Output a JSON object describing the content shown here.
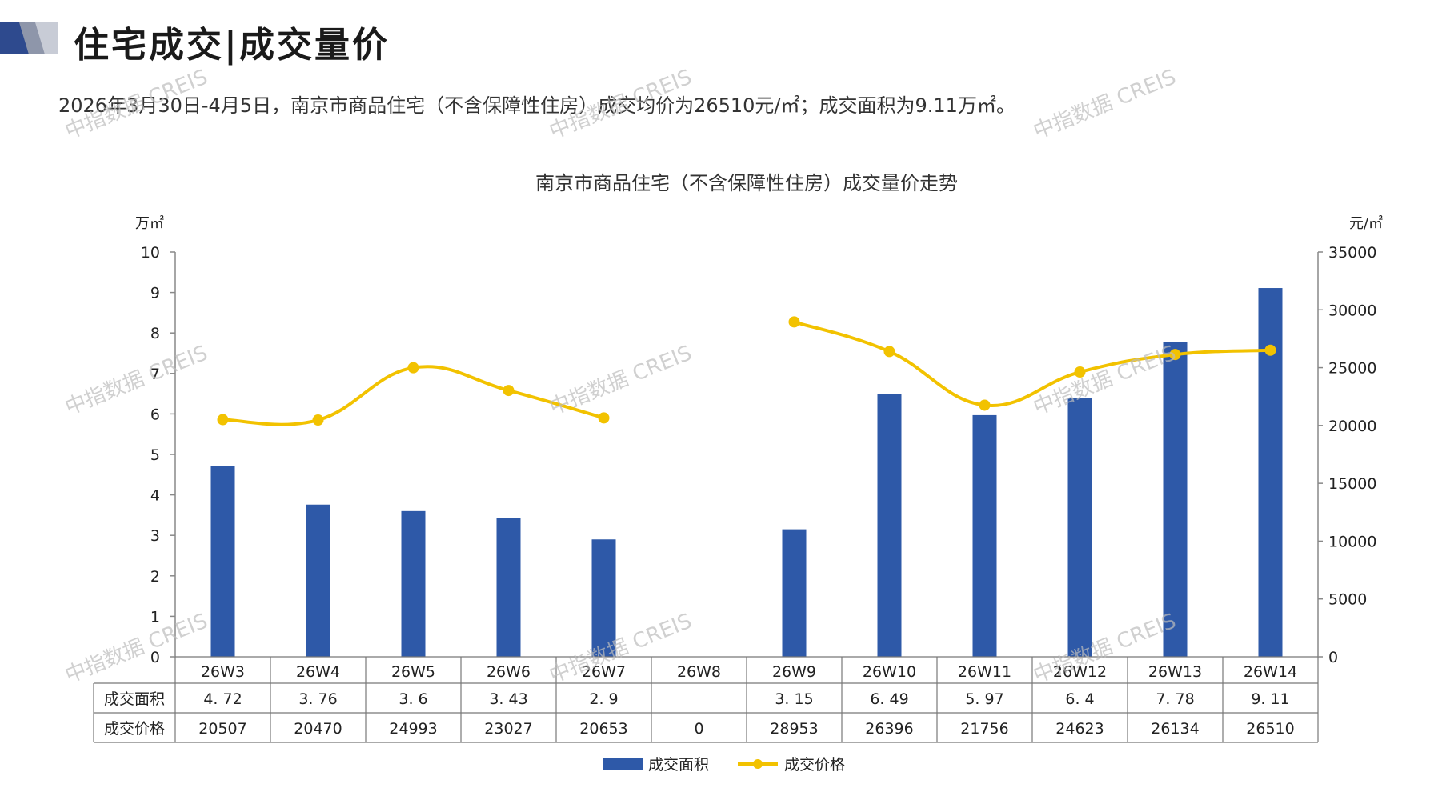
{
  "header": {
    "title": "住宅成交|成交量价",
    "summary": "2026年3月30日-4月5日，南京市商品住宅（不含保障性住房）成交均价为26510元/㎡；成交面积为9.11万㎡。"
  },
  "watermark": "中指数据 CREIS",
  "colors": {
    "bar": "#2E59A8",
    "line": "#F2C200",
    "logo_dark": "#2E4A8E",
    "logo_light": "#C8CCD6"
  },
  "chart_data": {
    "type": "bar",
    "title": "南京市商品住宅（不含保障性住房）成交量价走势",
    "ylabel": "万㎡",
    "y2label": "元/㎡",
    "ylim": [
      0,
      10
    ],
    "y2lim": [
      0,
      35000
    ],
    "yticks": [
      0,
      1,
      2,
      3,
      4,
      5,
      6,
      7,
      8,
      9,
      10
    ],
    "y2ticks": [
      0,
      5000,
      10000,
      15000,
      20000,
      25000,
      30000,
      35000
    ],
    "categories": [
      "26W3",
      "26W4",
      "26W5",
      "26W6",
      "26W7",
      "26W8",
      "26W9",
      "26W10",
      "26W11",
      "26W12",
      "26W13",
      "26W14"
    ],
    "series": [
      {
        "name": "成交面积",
        "type": "bar",
        "axis": "left",
        "values": [
          4.72,
          3.76,
          3.6,
          3.43,
          2.9,
          null,
          3.15,
          6.49,
          5.97,
          6.4,
          7.78,
          9.11
        ]
      },
      {
        "name": "成交价格",
        "type": "line",
        "axis": "right",
        "values": [
          20507,
          20470,
          24993,
          23027,
          20653,
          0,
          28953,
          26396,
          21756,
          24623,
          26134,
          26510
        ]
      }
    ],
    "table": {
      "rows": [
        {
          "label": "成交面积",
          "cells": [
            "4. 72",
            "3. 76",
            "3. 6",
            "3. 43",
            "2. 9",
            "",
            "3. 15",
            "6. 49",
            "5. 97",
            "6. 4",
            "7. 78",
            "9. 11"
          ]
        },
        {
          "label": "成交价格",
          "cells": [
            "20507",
            "20470",
            "24993",
            "23027",
            "20653",
            "0",
            "28953",
            "26396",
            "21756",
            "24623",
            "26134",
            "26510"
          ]
        }
      ]
    },
    "legend": [
      "成交面积",
      "成交价格"
    ],
    "legend_position": "bottom",
    "grid": false
  }
}
